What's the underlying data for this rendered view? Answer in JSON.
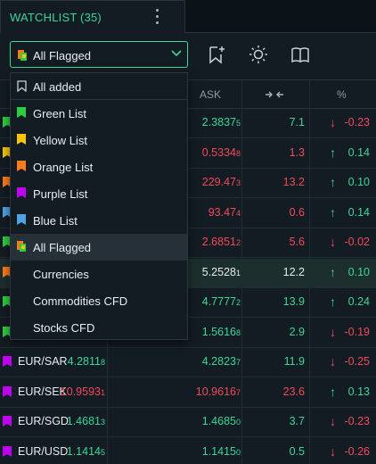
{
  "tab": {
    "title": "WATCHLIST (35)",
    "menu_icon": "kebab-icon"
  },
  "toolbar": {
    "filter_value": "All Flagged",
    "icons": [
      "bookmark-add-icon",
      "sun-icon",
      "book-open-icon"
    ]
  },
  "columns": {
    "ask": "ASK",
    "spread_icon": "arrows-inward-icon",
    "change": "%"
  },
  "colors": {
    "accent": "#3dd598",
    "down": "#f2495b",
    "flags": {
      "green": "#2ecc40",
      "yellow": "#f7c600",
      "orange": "#ff7a1a",
      "purple": "#c000f0",
      "blue": "#4fa3e0"
    }
  },
  "dropdown": {
    "items": [
      {
        "label": "All added",
        "icon": "bookmark-icon"
      },
      {
        "label": "Green List",
        "icon": "flag-green-icon"
      },
      {
        "label": "Yellow List",
        "icon": "flag-yellow-icon"
      },
      {
        "label": "Orange List",
        "icon": "flag-orange-icon"
      },
      {
        "label": "Purple List",
        "icon": "flag-purple-icon"
      },
      {
        "label": "Blue List",
        "icon": "flag-blue-icon"
      },
      {
        "label": "All Flagged",
        "icon": "flag-multi-icon",
        "selected": true
      },
      {
        "label": "Currencies",
        "icon": ""
      },
      {
        "label": "Commodities CFD",
        "icon": ""
      },
      {
        "label": "Stocks CFD",
        "icon": ""
      }
    ]
  },
  "rows": [
    {
      "flag": "green",
      "sym": "",
      "bid": "",
      "ask_main": "2.3837",
      "ask_last": "5",
      "ask_color": "green",
      "spread": "7.1",
      "dir": "down",
      "change": "-0.23"
    },
    {
      "flag": "yellow",
      "sym": "",
      "bid": "",
      "ask_main": "0.5334",
      "ask_last": "8",
      "ask_color": "red",
      "spread": "1.3",
      "dir": "up",
      "change": "0.14"
    },
    {
      "flag": "orange",
      "sym": "",
      "bid": "",
      "ask_main": "229.47",
      "ask_last": "3",
      "ask_color": "red",
      "spread": "13.2",
      "dir": "up",
      "change": "0.10"
    },
    {
      "flag": "blue",
      "sym": "",
      "bid": "",
      "ask_main": "93.47",
      "ask_last": "4",
      "ask_color": "red",
      "spread": "0.6",
      "dir": "up",
      "change": "0.14"
    },
    {
      "flag": "green",
      "sym": "",
      "bid": "",
      "ask_main": "2.6851",
      "ask_last": "2",
      "ask_color": "red",
      "spread": "5.6",
      "dir": "down",
      "change": "-0.02"
    },
    {
      "flag": "orange",
      "sym": "",
      "bid": "",
      "ask_main": "5.2528",
      "ask_last": "1",
      "ask_color": "white",
      "spread": "12.2",
      "dir": "up",
      "change": "0.10",
      "highlight": true
    },
    {
      "flag": "green",
      "sym": "",
      "bid": "",
      "ask_main": "4.7777",
      "ask_last": "2",
      "ask_color": "green",
      "spread": "13.9",
      "dir": "up",
      "change": "0.24"
    },
    {
      "flag": "green",
      "sym": "",
      "bid": "",
      "ask_main": "1.5616",
      "ask_last": "8",
      "ask_color": "green",
      "spread": "2.9",
      "dir": "down",
      "change": "-0.19"
    },
    {
      "flag": "purple",
      "sym": "EUR/SAR",
      "bid_main": "4.2811",
      "bid_last": "8",
      "bid_color": "green",
      "ask_main": "4.2823",
      "ask_last": "7",
      "ask_color": "green",
      "spread": "11.9",
      "dir": "down",
      "change": "-0.25"
    },
    {
      "flag": "purple",
      "sym": "EUR/SEK",
      "bid_main": "10.9593",
      "bid_last": "1",
      "bid_color": "red",
      "ask_main": "10.9616",
      "ask_last": "7",
      "ask_color": "red",
      "spread": "23.6",
      "dir": "up",
      "change": "0.13"
    },
    {
      "flag": "purple",
      "sym": "EUR/SGD",
      "bid_main": "1.4681",
      "bid_last": "3",
      "bid_color": "green",
      "ask_main": "1.4685",
      "ask_last": "0",
      "ask_color": "green",
      "spread": "3.7",
      "dir": "down",
      "change": "-0.23"
    },
    {
      "flag": "purple",
      "sym": "EUR/USD",
      "bid_main": "1.1414",
      "bid_last": "5",
      "bid_color": "green",
      "ask_main": "1.1415",
      "ask_last": "0",
      "ask_color": "green",
      "spread": "0.5",
      "dir": "down",
      "change": "-0.26"
    }
  ]
}
